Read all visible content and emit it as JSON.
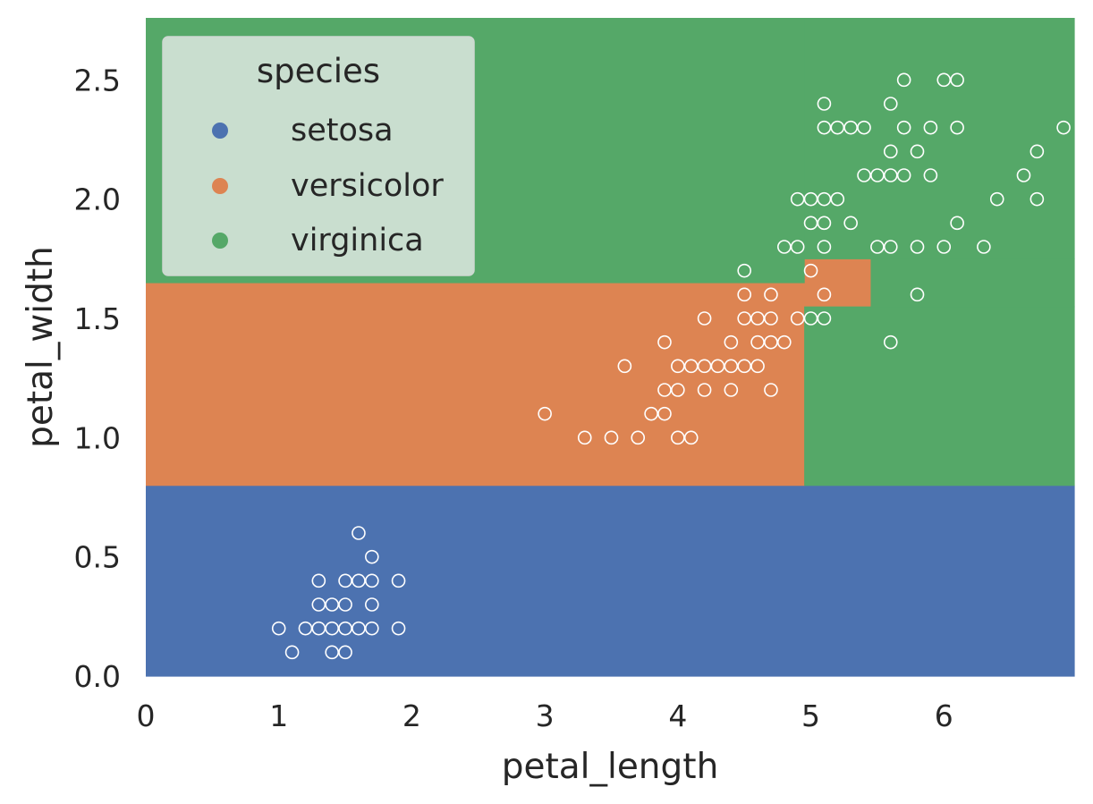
{
  "chart_data": {
    "type": "scatter",
    "xlabel": "petal_length",
    "ylabel": "petal_width",
    "xlim": [
      0,
      6.98
    ],
    "ylim": [
      0,
      2.76
    ],
    "grid": false,
    "xticks": [
      "0",
      "1",
      "2",
      "3",
      "4",
      "5",
      "6"
    ],
    "yticks": [
      "0.0",
      "0.5",
      "1.0",
      "1.5",
      "2.0",
      "2.5"
    ],
    "xtick_values": [
      0,
      1,
      2,
      3,
      4,
      5,
      6
    ],
    "ytick_values": [
      0,
      0.5,
      1,
      1.5,
      2,
      2.5
    ],
    "legend": {
      "title": "species",
      "placement": "top-left",
      "entries": [
        {
          "label": "setosa",
          "color": "#4c72b0"
        },
        {
          "label": "versicolor",
          "color": "#dd8452"
        },
        {
          "label": "virginica",
          "color": "#55a868"
        }
      ]
    },
    "decision_regions": [
      {
        "species": "setosa",
        "x": [
          0,
          6.98
        ],
        "y": [
          0,
          0.8
        ],
        "color": "#4c72b0"
      },
      {
        "species": "versicolor",
        "x": [
          0,
          4.95
        ],
        "y": [
          0.8,
          1.65
        ],
        "color": "#dd8452"
      },
      {
        "species": "versicolor",
        "x": [
          4.95,
          5.45
        ],
        "y": [
          1.55,
          1.75
        ],
        "color": "#dd8452"
      },
      {
        "species": "virginica",
        "x": [
          0,
          4.95
        ],
        "y": [
          1.65,
          2.76
        ],
        "color": "#55a868"
      },
      {
        "species": "virginica",
        "x": [
          4.95,
          6.98
        ],
        "y": [
          0.8,
          1.55
        ],
        "color": "#55a868"
      },
      {
        "species": "virginica",
        "x": [
          4.95,
          6.98
        ],
        "y": [
          1.75,
          2.76
        ],
        "color": "#55a868"
      },
      {
        "species": "virginica",
        "x": [
          5.45,
          6.98
        ],
        "y": [
          1.55,
          1.75
        ],
        "color": "#55a868"
      }
    ],
    "points": [
      [
        1.0,
        0.2
      ],
      [
        1.1,
        0.1
      ],
      [
        1.2,
        0.2
      ],
      [
        1.3,
        0.2
      ],
      [
        1.3,
        0.3
      ],
      [
        1.3,
        0.4
      ],
      [
        1.4,
        0.1
      ],
      [
        1.4,
        0.2
      ],
      [
        1.4,
        0.3
      ],
      [
        1.5,
        0.1
      ],
      [
        1.5,
        0.2
      ],
      [
        1.5,
        0.3
      ],
      [
        1.5,
        0.4
      ],
      [
        1.6,
        0.2
      ],
      [
        1.6,
        0.4
      ],
      [
        1.6,
        0.6
      ],
      [
        1.7,
        0.2
      ],
      [
        1.7,
        0.3
      ],
      [
        1.7,
        0.4
      ],
      [
        1.7,
        0.5
      ],
      [
        1.9,
        0.2
      ],
      [
        1.9,
        0.4
      ],
      [
        3.0,
        1.1
      ],
      [
        3.3,
        1.0
      ],
      [
        3.5,
        1.0
      ],
      [
        3.6,
        1.3
      ],
      [
        3.7,
        1.0
      ],
      [
        3.8,
        1.1
      ],
      [
        3.9,
        1.1
      ],
      [
        3.9,
        1.2
      ],
      [
        3.9,
        1.4
      ],
      [
        4.0,
        1.0
      ],
      [
        4.0,
        1.2
      ],
      [
        4.0,
        1.3
      ],
      [
        4.1,
        1.0
      ],
      [
        4.1,
        1.3
      ],
      [
        4.2,
        1.2
      ],
      [
        4.2,
        1.3
      ],
      [
        4.2,
        1.5
      ],
      [
        4.3,
        1.3
      ],
      [
        4.4,
        1.2
      ],
      [
        4.4,
        1.3
      ],
      [
        4.4,
        1.4
      ],
      [
        4.5,
        1.3
      ],
      [
        4.5,
        1.5
      ],
      [
        4.5,
        1.6
      ],
      [
        4.5,
        1.7
      ],
      [
        4.6,
        1.3
      ],
      [
        4.6,
        1.4
      ],
      [
        4.6,
        1.5
      ],
      [
        4.7,
        1.2
      ],
      [
        4.7,
        1.4
      ],
      [
        4.7,
        1.5
      ],
      [
        4.7,
        1.6
      ],
      [
        4.8,
        1.4
      ],
      [
        4.8,
        1.8
      ],
      [
        4.9,
        1.5
      ],
      [
        4.9,
        1.8
      ],
      [
        4.9,
        2.0
      ],
      [
        5.0,
        1.5
      ],
      [
        5.0,
        1.7
      ],
      [
        5.0,
        1.9
      ],
      [
        5.0,
        2.0
      ],
      [
        5.1,
        1.5
      ],
      [
        5.1,
        1.6
      ],
      [
        5.1,
        1.8
      ],
      [
        5.1,
        1.9
      ],
      [
        5.1,
        2.0
      ],
      [
        5.1,
        2.3
      ],
      [
        5.1,
        2.4
      ],
      [
        5.2,
        2.0
      ],
      [
        5.2,
        2.3
      ],
      [
        5.3,
        1.9
      ],
      [
        5.3,
        2.3
      ],
      [
        5.4,
        2.1
      ],
      [
        5.4,
        2.3
      ],
      [
        5.5,
        1.8
      ],
      [
        5.5,
        2.1
      ],
      [
        5.6,
        1.4
      ],
      [
        5.6,
        1.8
      ],
      [
        5.6,
        2.1
      ],
      [
        5.6,
        2.2
      ],
      [
        5.6,
        2.4
      ],
      [
        5.7,
        2.1
      ],
      [
        5.7,
        2.3
      ],
      [
        5.7,
        2.5
      ],
      [
        5.8,
        1.6
      ],
      [
        5.8,
        1.8
      ],
      [
        5.8,
        2.2
      ],
      [
        5.9,
        2.1
      ],
      [
        5.9,
        2.3
      ],
      [
        6.0,
        1.8
      ],
      [
        6.0,
        2.5
      ],
      [
        6.1,
        1.9
      ],
      [
        6.1,
        2.3
      ],
      [
        6.1,
        2.5
      ],
      [
        6.3,
        1.8
      ],
      [
        6.4,
        2.0
      ],
      [
        6.6,
        2.1
      ],
      [
        6.7,
        2.0
      ],
      [
        6.7,
        2.2
      ],
      [
        6.9,
        2.3
      ]
    ]
  }
}
